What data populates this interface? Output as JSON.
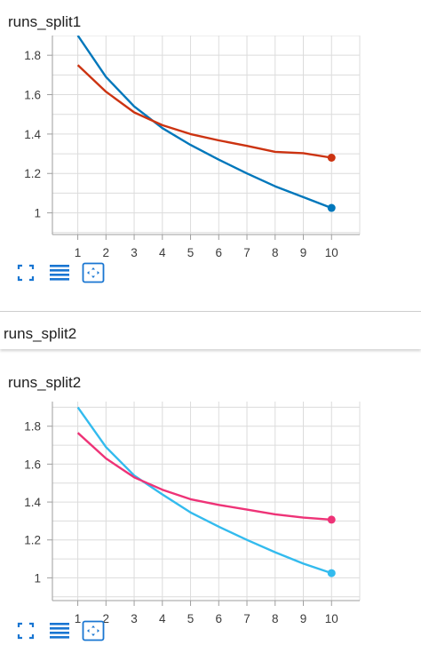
{
  "cards": [
    {
      "title": "runs_split1"
    },
    {
      "title": "runs_split2"
    }
  ],
  "group_header": {
    "title": "runs_split2"
  },
  "toolbar_icons": [
    "fit-domain-icon",
    "toggle-log-scale-icon",
    "expand-card-icon"
  ],
  "colors": {
    "split1_series_a": "#0077bb",
    "split1_series_b": "#cc3311",
    "split2_series_a": "#33bbee",
    "split2_series_b": "#ee3377",
    "toolbar_icon": "#1976d2"
  },
  "chart_data": [
    {
      "type": "line",
      "x": [
        1,
        2,
        3,
        4,
        5,
        6,
        7,
        8,
        9,
        10
      ],
      "xticks": [
        "1",
        "2",
        "3",
        "4",
        "5",
        "6",
        "7",
        "8",
        "9",
        "10"
      ],
      "yticks": [
        "1",
        "1.2",
        "1.4",
        "1.6",
        "1.8"
      ],
      "xlim": [
        0.1,
        11
      ],
      "ylim": [
        0.89,
        1.9
      ],
      "grid": true,
      "series": [
        {
          "values": [
            1.9,
            1.69,
            1.54,
            1.43,
            1.345,
            1.27,
            1.2,
            1.135,
            1.08,
            1.025
          ],
          "color": "#0077bb"
        },
        {
          "values": [
            1.75,
            1.615,
            1.51,
            1.445,
            1.4,
            1.368,
            1.34,
            1.31,
            1.303,
            1.28
          ],
          "color": "#cc3311"
        }
      ]
    },
    {
      "type": "line",
      "x": [
        1,
        2,
        3,
        4,
        5,
        6,
        7,
        8,
        9,
        10
      ],
      "xticks": [
        "1",
        "2",
        "3",
        "4",
        "5",
        "6",
        "7",
        "8",
        "9",
        "10"
      ],
      "yticks": [
        "1",
        "1.2",
        "1.4",
        "1.6",
        "1.8"
      ],
      "xlim": [
        0.1,
        11
      ],
      "ylim": [
        0.88,
        1.93
      ],
      "grid": true,
      "series": [
        {
          "values": [
            1.9,
            1.69,
            1.54,
            1.44,
            1.345,
            1.27,
            1.2,
            1.135,
            1.075,
            1.025
          ],
          "color": "#33bbee"
        },
        {
          "values": [
            1.765,
            1.63,
            1.53,
            1.465,
            1.415,
            1.385,
            1.36,
            1.335,
            1.318,
            1.307
          ],
          "color": "#ee3377"
        }
      ]
    }
  ]
}
